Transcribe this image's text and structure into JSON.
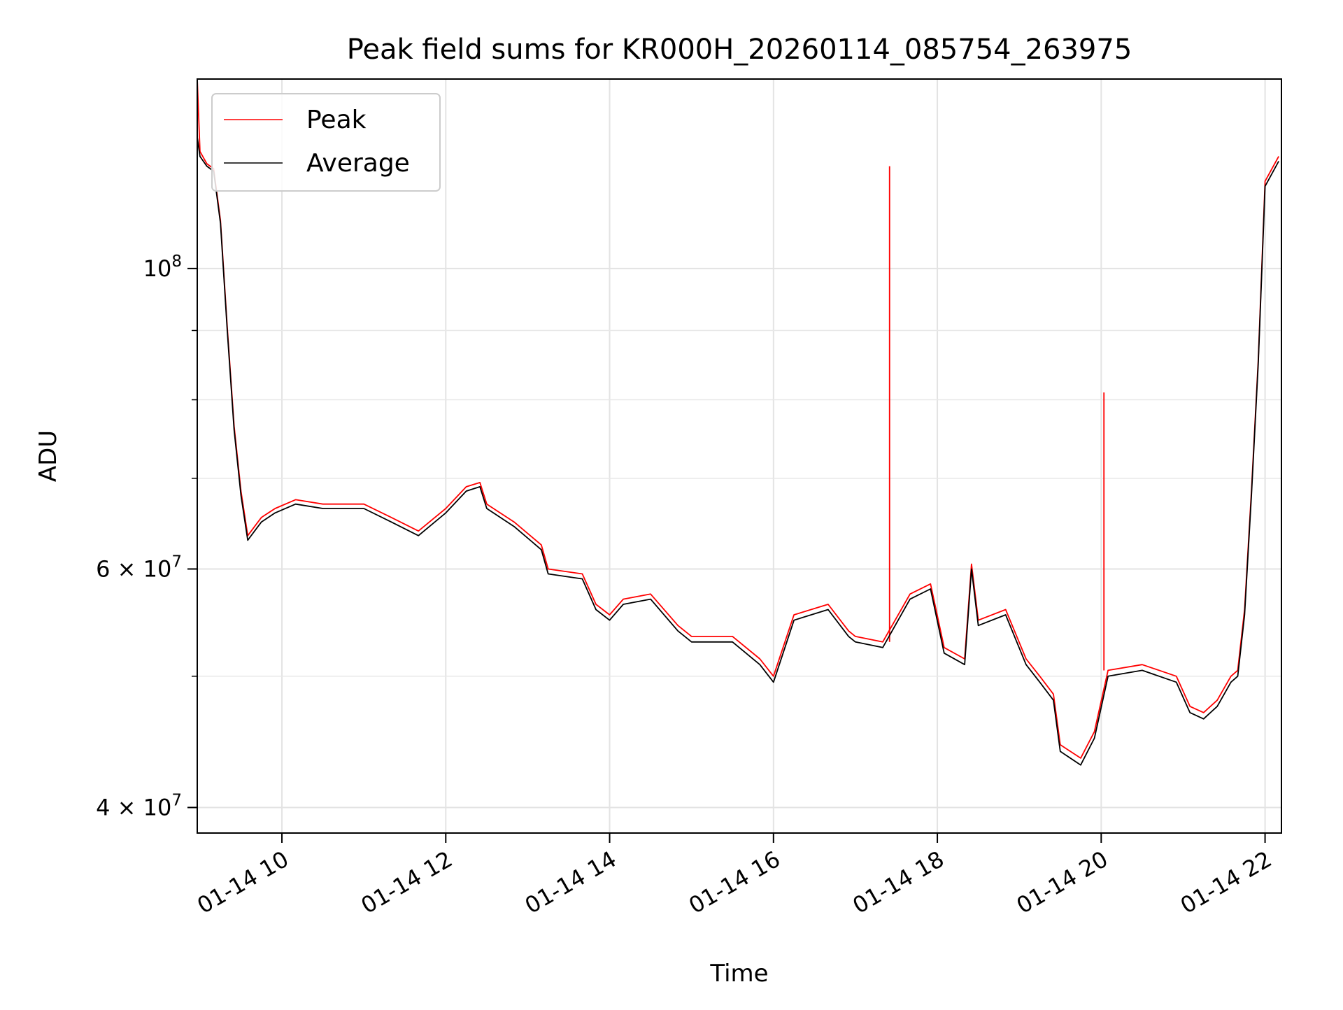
{
  "chart_data": {
    "type": "line",
    "title": "Peak field sums for KR000H_20260114_085754_263975",
    "xlabel": "Time",
    "ylabel": "ADU",
    "x_axis": {
      "kind": "time",
      "range": [
        "2026-01-14 08:58",
        "2026-01-14 22:12"
      ],
      "ticks": [
        {
          "value": "2026-01-14 10:00",
          "label": "01-14 10"
        },
        {
          "value": "2026-01-14 12:00",
          "label": "01-14 12"
        },
        {
          "value": "2026-01-14 14:00",
          "label": "01-14 14"
        },
        {
          "value": "2026-01-14 16:00",
          "label": "01-14 16"
        },
        {
          "value": "2026-01-14 18:00",
          "label": "01-14 18"
        },
        {
          "value": "2026-01-14 20:00",
          "label": "01-14 20"
        },
        {
          "value": "2026-01-14 22:00",
          "label": "01-14 22"
        }
      ],
      "tick_label_rotation": "30 degrees"
    },
    "y_axis": {
      "scale": "log",
      "range": [
        38300000,
        138000000
      ],
      "major_ticks": [
        {
          "value": 100000000,
          "base": "10",
          "exponent": "8"
        },
        {
          "value": 60000000,
          "coeff": "6",
          "base": "10",
          "exponent": "7"
        },
        {
          "value": 40000000,
          "coeff": "4",
          "base": "10",
          "exponent": "7"
        }
      ],
      "minor_ticks": [
        50000000,
        70000000,
        80000000,
        90000000
      ]
    },
    "grid": true,
    "legend": {
      "placement": "upper-left",
      "entries": [
        {
          "label": "Peak",
          "color": "#ff0000"
        },
        {
          "label": "Average",
          "color": "#000000"
        }
      ]
    },
    "series": [
      {
        "name": "Average",
        "color": "#000000",
        "x": [
          "2026-01-14 08:58",
          "2026-01-14 09:00",
          "2026-01-14 09:05",
          "2026-01-14 09:10",
          "2026-01-14 09:15",
          "2026-01-14 09:20",
          "2026-01-14 09:25",
          "2026-01-14 09:30",
          "2026-01-14 09:35",
          "2026-01-14 09:40",
          "2026-01-14 09:45",
          "2026-01-14 09:55",
          "2026-01-14 10:10",
          "2026-01-14 10:30",
          "2026-01-14 11:00",
          "2026-01-14 11:20",
          "2026-01-14 11:40",
          "2026-01-14 12:00",
          "2026-01-14 12:15",
          "2026-01-14 12:25",
          "2026-01-14 12:30",
          "2026-01-14 12:50",
          "2026-01-14 13:10",
          "2026-01-14 13:15",
          "2026-01-14 13:40",
          "2026-01-14 13:50",
          "2026-01-14 14:00",
          "2026-01-14 14:10",
          "2026-01-14 14:30",
          "2026-01-14 14:50",
          "2026-01-14 15:00",
          "2026-01-14 15:30",
          "2026-01-14 15:50",
          "2026-01-14 16:00",
          "2026-01-14 16:15",
          "2026-01-14 16:40",
          "2026-01-14 16:55",
          "2026-01-14 17:00",
          "2026-01-14 17:20",
          "2026-01-14 17:40",
          "2026-01-14 17:55",
          "2026-01-14 18:05",
          "2026-01-14 18:20",
          "2026-01-14 18:25",
          "2026-01-14 18:30",
          "2026-01-14 18:50",
          "2026-01-14 19:05",
          "2026-01-14 19:15",
          "2026-01-14 19:25",
          "2026-01-14 19:30",
          "2026-01-14 19:45",
          "2026-01-14 19:55",
          "2026-01-14 20:05",
          "2026-01-14 20:30",
          "2026-01-14 20:55",
          "2026-01-14 21:05",
          "2026-01-14 21:15",
          "2026-01-14 21:25",
          "2026-01-14 21:35",
          "2026-01-14 21:40",
          "2026-01-14 21:45",
          "2026-01-14 21:50",
          "2026-01-14 21:55",
          "2026-01-14 22:00",
          "2026-01-14 22:10"
        ],
        "values": [
          125000000,
          121000000,
          119000000,
          118000000,
          108000000,
          90000000,
          76000000,
          68000000,
          63000000,
          64000000,
          65000000,
          66000000,
          67000000,
          66500000,
          66500000,
          65000000,
          63500000,
          66000000,
          68500000,
          69000000,
          66500000,
          64500000,
          62000000,
          59500000,
          59000000,
          56000000,
          55000000,
          56500000,
          57000000,
          54000000,
          53000000,
          53000000,
          51000000,
          49500000,
          55000000,
          56000000,
          53500000,
          53000000,
          52500000,
          57000000,
          58000000,
          52000000,
          51000000,
          60000000,
          54500000,
          55500000,
          51000000,
          49500000,
          48000000,
          44000000,
          43000000,
          45000000,
          50000000,
          50500000,
          49500000,
          47000000,
          46500000,
          47500000,
          49500000,
          50000000,
          55500000,
          68000000,
          85000000,
          115000000,
          120000000
        ]
      },
      {
        "name": "Peak",
        "color": "#ff0000",
        "x": [
          "2026-01-14 08:58",
          "2026-01-14 09:00",
          "2026-01-14 09:05",
          "2026-01-14 09:10",
          "2026-01-14 09:15",
          "2026-01-14 09:20",
          "2026-01-14 09:25",
          "2026-01-14 09:30",
          "2026-01-14 09:35",
          "2026-01-14 09:40",
          "2026-01-14 09:45",
          "2026-01-14 09:55",
          "2026-01-14 10:10",
          "2026-01-14 10:30",
          "2026-01-14 11:00",
          "2026-01-14 11:20",
          "2026-01-14 11:40",
          "2026-01-14 12:00",
          "2026-01-14 12:15",
          "2026-01-14 12:25",
          "2026-01-14 12:30",
          "2026-01-14 12:50",
          "2026-01-14 13:10",
          "2026-01-14 13:15",
          "2026-01-14 13:40",
          "2026-01-14 13:50",
          "2026-01-14 14:00",
          "2026-01-14 14:10",
          "2026-01-14 14:30",
          "2026-01-14 14:50",
          "2026-01-14 15:00",
          "2026-01-14 15:30",
          "2026-01-14 15:50",
          "2026-01-14 16:00",
          "2026-01-14 16:15",
          "2026-01-14 16:40",
          "2026-01-14 16:55",
          "2026-01-14 17:00",
          "2026-01-14 17:20",
          "2026-01-14 17:40",
          "2026-01-14 17:55",
          "2026-01-14 18:05",
          "2026-01-14 18:20",
          "2026-01-14 18:25",
          "2026-01-14 18:30",
          "2026-01-14 18:50",
          "2026-01-14 19:05",
          "2026-01-14 19:15",
          "2026-01-14 19:25",
          "2026-01-14 19:30",
          "2026-01-14 19:45",
          "2026-01-14 19:55",
          "2026-01-14 20:05",
          "2026-01-14 20:30",
          "2026-01-14 20:55",
          "2026-01-14 21:05",
          "2026-01-14 21:15",
          "2026-01-14 21:25",
          "2026-01-14 21:35",
          "2026-01-14 21:40",
          "2026-01-14 21:45",
          "2026-01-14 21:50",
          "2026-01-14 21:55",
          "2026-01-14 22:00",
          "2026-01-14 22:10"
        ],
        "values": [
          138000000,
          122000000,
          119500000,
          118500000,
          108500000,
          90500000,
          76500000,
          68500000,
          63500000,
          64500000,
          65500000,
          66500000,
          67500000,
          67000000,
          67000000,
          65500000,
          64000000,
          66500000,
          69000000,
          69500000,
          67000000,
          65000000,
          62500000,
          60000000,
          59500000,
          56500000,
          55500000,
          57000000,
          57500000,
          54500000,
          53500000,
          53500000,
          51500000,
          50000000,
          55500000,
          56500000,
          54000000,
          53500000,
          53000000,
          57500000,
          58500000,
          52500000,
          51500000,
          60500000,
          55000000,
          56000000,
          51500000,
          50000000,
          48500000,
          44500000,
          43500000,
          45500000,
          50500000,
          51000000,
          50000000,
          47500000,
          47000000,
          48000000,
          50000000,
          50500000,
          56000000,
          68500000,
          85500000,
          116000000,
          121000000
        ],
        "spikes": [
          {
            "x": "2026-01-14 17:25",
            "value": 119000000
          },
          {
            "x": "2026-01-14 20:02",
            "value": 81000000
          }
        ]
      }
    ]
  }
}
